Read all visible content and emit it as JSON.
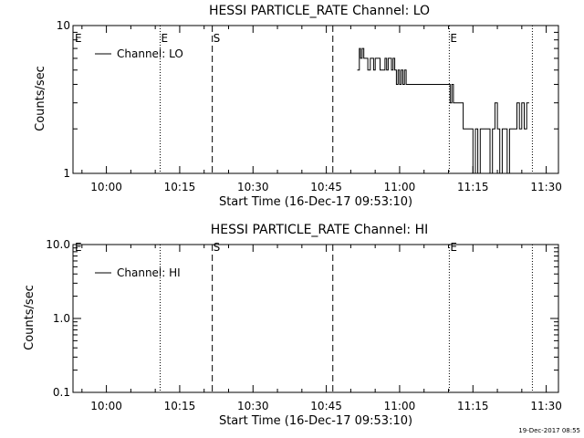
{
  "chart_data": [
    {
      "type": "line",
      "title": "HESSI PARTICLE_RATE Channel: LO",
      "xlabel": "Start Time (16-Dec-17 09:53:10)",
      "ylabel": "Counts/sec",
      "yscale": "log",
      "ylim": [
        1,
        10
      ],
      "ytick_labels": [
        "1",
        "10"
      ],
      "xlim": [
        "09:53:10",
        "11:32:30"
      ],
      "xtick_labels": [
        "10:00",
        "10:15",
        "10:30",
        "10:45",
        "11:00",
        "11:15",
        "11:30"
      ],
      "grid": false,
      "legend_position": "top-left",
      "series": [
        {
          "name": "Channel: LO",
          "x": [
            "10:51:20",
            "10:51:45",
            "10:52:00",
            "10:52:20",
            "10:52:40",
            "10:53:00",
            "10:53:30",
            "10:54:00",
            "10:54:20",
            "10:54:40",
            "10:55:00",
            "10:55:20",
            "10:55:40",
            "10:56:00",
            "10:56:30",
            "10:57:00",
            "10:57:20",
            "10:57:40",
            "10:58:00",
            "10:58:20",
            "10:58:40",
            "10:59:00",
            "10:59:20",
            "10:59:40",
            "11:00:00",
            "11:00:20",
            "11:00:40",
            "11:01:00",
            "11:01:20",
            "11:01:40",
            "11:02:00",
            "11:02:30",
            "11:03:00",
            "11:03:30",
            "11:04:00",
            "11:05:00",
            "11:06:00",
            "11:07:00",
            "11:08:00",
            "11:09:00",
            "11:10:00",
            "11:10:20",
            "11:10:40",
            "11:11:00",
            "11:11:30",
            "11:12:00",
            "11:12:30",
            "11:13:00",
            "11:13:30",
            "11:14:00",
            "11:14:30",
            "11:15:00",
            "11:15:30",
            "11:16:00",
            "11:16:30",
            "11:17:00",
            "11:17:30",
            "11:18:00",
            "11:18:30",
            "11:19:00",
            "11:19:30",
            "11:20:00",
            "11:20:30",
            "11:21:00",
            "11:21:30",
            "11:22:00",
            "11:22:30",
            "11:23:00",
            "11:23:30",
            "11:24:00",
            "11:24:30",
            "11:25:00",
            "11:25:30",
            "11:26:00",
            "11:26:30"
          ],
          "values": [
            5,
            7,
            6,
            7,
            6,
            6,
            5,
            6,
            6,
            5,
            6,
            6,
            6,
            5,
            5,
            6,
            5,
            6,
            6,
            5,
            6,
            5,
            4,
            5,
            4,
            5,
            4,
            5,
            4,
            4,
            4,
            4,
            4,
            4,
            4,
            4,
            4,
            4,
            4,
            4,
            4,
            3,
            4,
            3,
            3,
            3,
            3,
            2,
            2,
            2,
            2,
            1,
            2,
            1,
            2,
            2,
            2,
            2,
            1,
            2,
            3,
            2,
            1,
            2,
            2,
            1,
            2,
            2,
            2,
            3,
            2,
            3,
            2,
            3,
            3
          ]
        }
      ],
      "vlines": [
        {
          "time": "10:11:00",
          "style": "dotted",
          "label": "E"
        },
        {
          "time": "10:21:40",
          "style": "dashed",
          "label": "S"
        },
        {
          "time": "10:46:20",
          "style": "dashed",
          "label": ""
        },
        {
          "time": "11:10:10",
          "style": "dotted",
          "label": "E"
        },
        {
          "time": "11:27:10",
          "style": "dotted",
          "label": ""
        }
      ],
      "edge_label_left": "E"
    },
    {
      "type": "line",
      "title": "HESSI PARTICLE_RATE Channel: HI",
      "xlabel": "Start Time (16-Dec-17 09:53:10)",
      "ylabel": "Counts/sec",
      "yscale": "log",
      "ylim": [
        0.1,
        10
      ],
      "ytick_labels": [
        "0.1",
        "1.0",
        "10.0"
      ],
      "xlim": [
        "09:53:10",
        "11:32:30"
      ],
      "xtick_labels": [
        "10:00",
        "10:15",
        "10:30",
        "10:45",
        "11:00",
        "11:15",
        "11:30"
      ],
      "grid": false,
      "legend_position": "top-left",
      "series": [
        {
          "name": "Channel: HI",
          "x": [],
          "values": []
        }
      ],
      "vlines": [
        {
          "time": "10:11:00",
          "style": "dotted",
          "label": ""
        },
        {
          "time": "10:21:40",
          "style": "dashed",
          "label": "S"
        },
        {
          "time": "10:46:20",
          "style": "dashed",
          "label": ""
        },
        {
          "time": "11:10:10",
          "style": "dotted",
          "label": "E"
        },
        {
          "time": "11:27:10",
          "style": "dotted",
          "label": ""
        }
      ],
      "edge_label_left": "E"
    }
  ],
  "footer_stamp": "19-Dec-2017 08:55"
}
